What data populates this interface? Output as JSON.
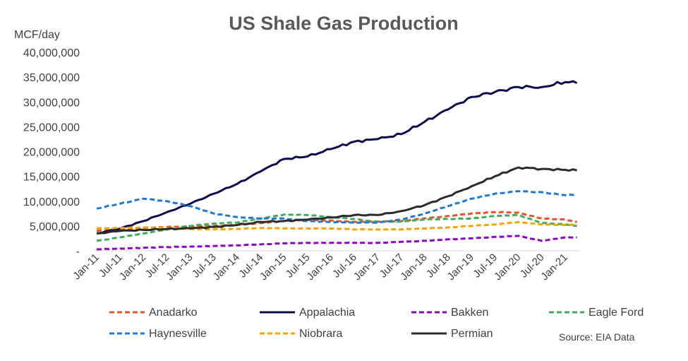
{
  "chart_data": {
    "type": "line",
    "title": "US Shale Gas Production",
    "ylabel": "MCF/day",
    "ylim": [
      0,
      40000000
    ],
    "yticks": [
      "-",
      "5,000,000",
      "10,000,000",
      "15,000,000",
      "20,000,000",
      "25,000,000",
      "30,000,000",
      "35,000,000",
      "40,000,000"
    ],
    "xticks": [
      "Jan-11",
      "Jul-11",
      "Jan-12",
      "Jul-12",
      "Jan-13",
      "Jul-13",
      "Jan-14",
      "Jul-14",
      "Jan-15",
      "Jul-15",
      "Jan-16",
      "Jul-16",
      "Jan-17",
      "Jul-17",
      "Jan-18",
      "Jul-18",
      "Jan-19",
      "Jul-19",
      "Jan-20",
      "Jul-20",
      "Jan-21"
    ],
    "x": [
      "Jan-11",
      "Jul-11",
      "Jan-12",
      "Jul-12",
      "Jan-13",
      "Jul-13",
      "Jan-14",
      "Jul-14",
      "Jan-15",
      "Jul-15",
      "Jan-16",
      "Jul-16",
      "Jan-17",
      "Jul-17",
      "Jan-18",
      "Jul-18",
      "Jan-19",
      "Jul-19",
      "Jan-20",
      "Jul-20",
      "Jan-21"
    ],
    "x_end": "Apr-21",
    "legend_position": "bottom",
    "source": "Source: EIA Data",
    "series": [
      {
        "name": "Anadarko",
        "style": "dashed",
        "color": "#E8532A",
        "values": [
          4000000,
          4300000,
          4600000,
          4800000,
          4900000,
          5000000,
          5200000,
          5600000,
          6000000,
          6200000,
          6100000,
          5800000,
          5900000,
          6000000,
          6500000,
          7000000,
          7500000,
          7800000,
          7700000,
          6500000,
          6300000
        ],
        "last": 5800000
      },
      {
        "name": "Appalachia",
        "style": "solid",
        "color": "#0F0C4E",
        "values": [
          3500000,
          4500000,
          6000000,
          7800000,
          9500000,
          11500000,
          13500000,
          16000000,
          18500000,
          19000000,
          20500000,
          22000000,
          22500000,
          23500000,
          26000000,
          28500000,
          31000000,
          32000000,
          33000000,
          33000000,
          34000000
        ],
        "last": 33800000
      },
      {
        "name": "Bakken",
        "style": "dashed",
        "color": "#8B08C9",
        "values": [
          300000,
          450000,
          600000,
          750000,
          850000,
          950000,
          1100000,
          1300000,
          1500000,
          1600000,
          1600000,
          1600000,
          1600000,
          1800000,
          2000000,
          2300000,
          2500000,
          2800000,
          3000000,
          2000000,
          2700000
        ],
        "last": 2700000
      },
      {
        "name": "Eagle Ford",
        "style": "dashed",
        "color": "#3FAE5A",
        "values": [
          2000000,
          2700000,
          3500000,
          4300000,
          5000000,
          5500000,
          5700000,
          6500000,
          7300000,
          7200000,
          6800000,
          6400000,
          5800000,
          5900000,
          6300000,
          6400000,
          6500000,
          7000000,
          7200000,
          5600000,
          5300000
        ],
        "last": 5000000
      },
      {
        "name": "Haynesville",
        "style": "dashed",
        "color": "#1F78D1",
        "values": [
          8500000,
          9500000,
          10500000,
          10000000,
          9000000,
          7500000,
          6800000,
          6500000,
          6500000,
          6000000,
          5800000,
          5700000,
          5700000,
          6300000,
          7500000,
          9000000,
          10500000,
          11500000,
          12000000,
          11800000,
          11200000
        ],
        "last": 11300000
      },
      {
        "name": "Niobrara",
        "style": "dashed",
        "color": "#F5A500",
        "values": [
          4500000,
          4600000,
          4700000,
          4600000,
          4400000,
          4300000,
          4400000,
          4600000,
          4500000,
          4500000,
          4500000,
          4300000,
          4300000,
          4300000,
          4500000,
          4700000,
          5000000,
          5300000,
          5800000,
          5300000,
          5200000
        ],
        "last": 5300000
      },
      {
        "name": "Permian",
        "style": "solid",
        "color": "#2B2B2B",
        "values": [
          3500000,
          4000000,
          4200000,
          4400000,
          4500000,
          4800000,
          5200000,
          5800000,
          6000000,
          6300000,
          6700000,
          7200000,
          7200000,
          8000000,
          9200000,
          11000000,
          13000000,
          15000000,
          16800000,
          16500000,
          16300000
        ],
        "last": 16200000
      }
    ]
  }
}
